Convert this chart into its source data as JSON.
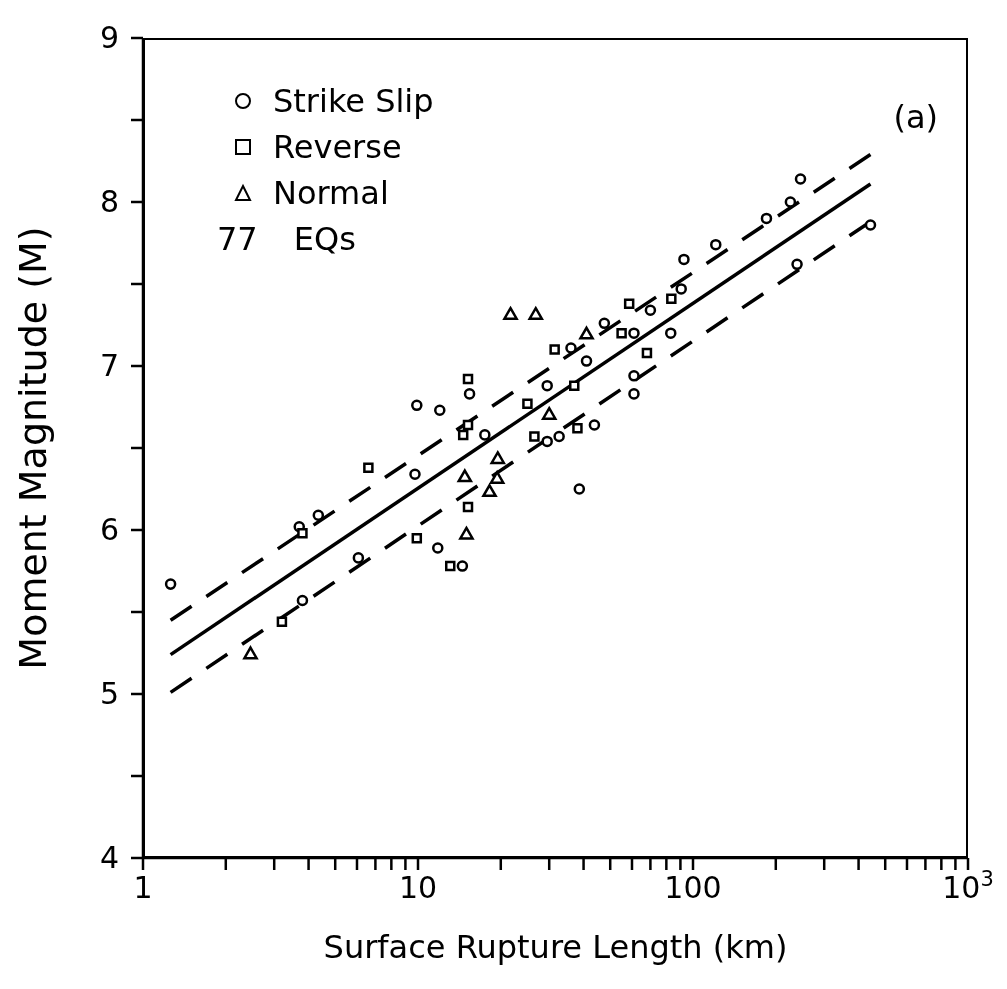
{
  "chart_data": {
    "type": "scatter",
    "xlabel": "Surface Rupture Length (km)",
    "ylabel": "Moment Magnitude (M)",
    "log": "x",
    "xlim": [
      1,
      1000
    ],
    "xticks": [
      1,
      {
        "value": 2,
        "label": null
      },
      {
        "value": 3,
        "label": null
      },
      {
        "value": 4,
        "label": null
      },
      {
        "value": 5,
        "label": null
      },
      {
        "value": 6,
        "label": null
      },
      {
        "value": 7,
        "label": null
      },
      {
        "value": 8,
        "label": null
      },
      {
        "value": 9,
        "label": null
      },
      10,
      {
        "value": 20,
        "label": null
      },
      {
        "value": 30,
        "label": null
      },
      {
        "value": 40,
        "label": null
      },
      {
        "value": 50,
        "label": null
      },
      {
        "value": 60,
        "label": null
      },
      {
        "value": 70,
        "label": null
      },
      {
        "value": 80,
        "label": null
      },
      {
        "value": 90,
        "label": null
      },
      100,
      {
        "value": 200,
        "label": null
      },
      {
        "value": 300,
        "label": null
      },
      {
        "value": 400,
        "label": null
      },
      {
        "value": 500,
        "label": null
      },
      {
        "value": 600,
        "label": null
      },
      {
        "value": 700,
        "label": null
      },
      {
        "value": 800,
        "label": null
      },
      {
        "value": 900,
        "label": null
      },
      {
        "value": 1000,
        "label": "10$^{3}$"
      }
    ],
    "ylim": [
      4,
      9
    ],
    "yticks": [
      4,
      {
        "value": 4.5,
        "label": null
      },
      5,
      {
        "value": 5.5,
        "label": null
      },
      6,
      {
        "value": 6.5,
        "label": null
      },
      7,
      {
        "value": 7.5,
        "label": null
      },
      8,
      {
        "value": 8.5,
        "label": null
      },
      9
    ],
    "grid": false,
    "legend": "top left",
    "annotations": [
      "77 EQs",
      "(a)"
    ],
    "series": [
      {
        "name": "Strike Slip",
        "marker": "circle",
        "color": "#000000",
        "x": [
          1.26,
          3.8,
          6.07,
          3.7,
          4.34,
          9.75,
          11.8,
          9.9,
          12.0,
          15.4,
          14.5,
          17.5,
          38.6,
          43.8,
          36,
          41,
          29.5,
          29.5,
          32.6,
          246,
          226,
          185,
          442,
          239,
          121,
          92.7,
          90.6,
          83,
          47.6,
          61,
          61,
          70,
          61
        ],
        "values": [
          5.67,
          5.57,
          5.83,
          6.02,
          6.09,
          6.34,
          5.89,
          6.76,
          6.73,
          6.83,
          5.78,
          6.58,
          6.25,
          6.64,
          7.11,
          7.03,
          6.88,
          6.54,
          6.57,
          8.14,
          8.0,
          7.9,
          7.86,
          7.62,
          7.74,
          7.65,
          7.47,
          7.2,
          7.26,
          6.94,
          6.83,
          7.34,
          7.2
        ]
      },
      {
        "name": "Reverse",
        "marker": "square",
        "color": "#000000",
        "x": [
          3.2,
          3.8,
          9.9,
          6.6,
          15.2,
          15.2,
          14.6,
          15.2,
          13.1,
          38,
          26.5,
          25,
          31.4,
          37,
          58.6,
          83.4,
          68,
          55
        ],
        "values": [
          5.44,
          5.98,
          5.95,
          6.38,
          6.92,
          6.64,
          6.58,
          6.14,
          5.78,
          6.62,
          6.57,
          6.77,
          7.1,
          6.88,
          7.38,
          7.41,
          7.08,
          7.2
        ]
      },
      {
        "name": "Normal",
        "marker": "triangle",
        "color": "#000000",
        "x": [
          2.46,
          14.8,
          15.0,
          19.5,
          19.4,
          18.2,
          41,
          21.7,
          26.8,
          30
        ],
        "values": [
          5.24,
          6.32,
          5.97,
          6.43,
          6.31,
          6.23,
          7.19,
          7.31,
          7.31,
          6.7
        ]
      },
      {
        "type": "line",
        "marker": "none",
        "line_style": "solid",
        "color": "#000000",
        "x": [
          1.26,
          442
        ],
        "values": [
          5.24,
          8.11
        ]
      },
      {
        "type": "line",
        "marker": "none",
        "line_style": "dashed",
        "color": "#000000",
        "x": [
          1.26,
          442
        ],
        "values": [
          5.45,
          8.29
        ]
      },
      {
        "type": "line",
        "marker": "none",
        "line_style": "dashed",
        "color": "#000000",
        "x": [
          1.26,
          442
        ],
        "values": [
          5.01,
          7.88
        ]
      }
    ]
  }
}
